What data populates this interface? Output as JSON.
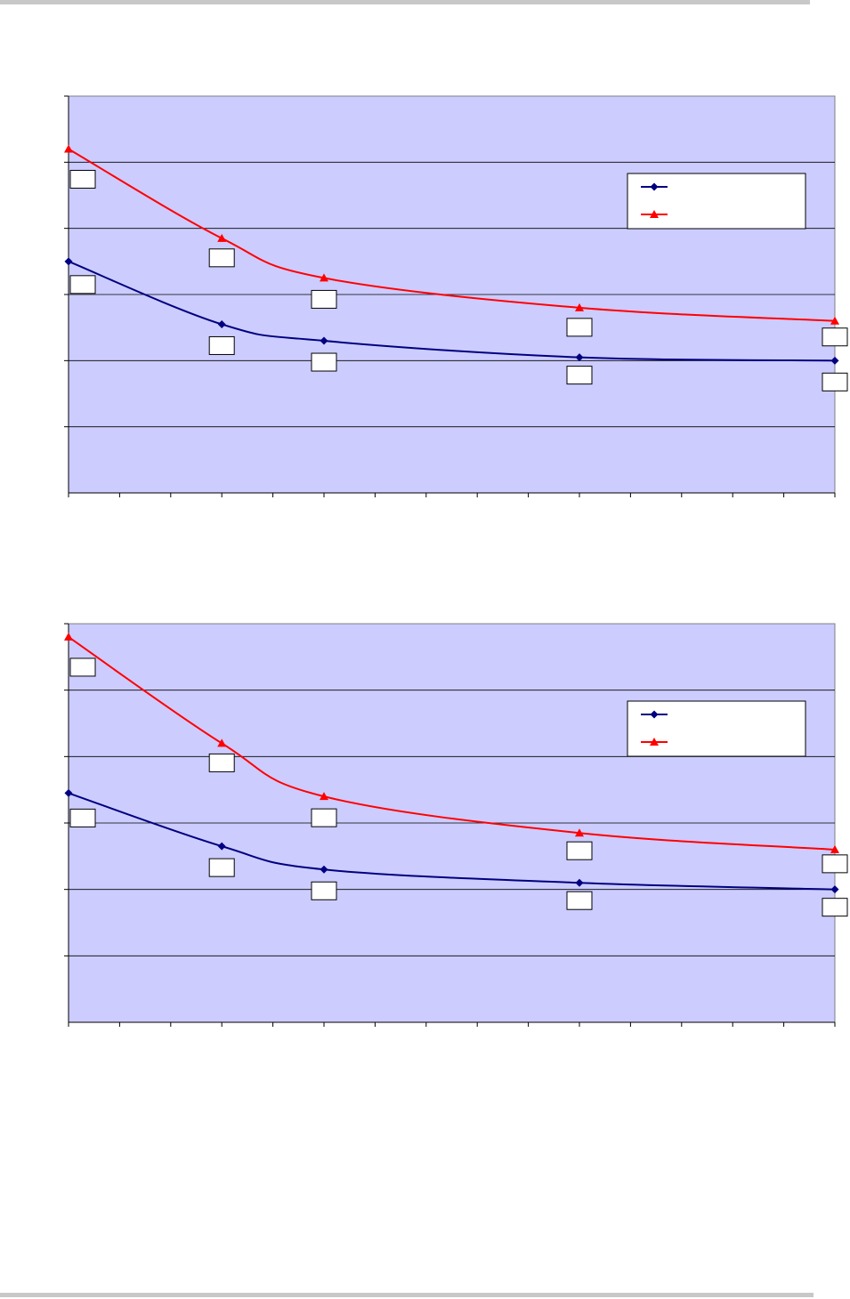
{
  "colors": {
    "plot_bg": "#ccccff",
    "grid": "#000000",
    "series_blue": "#000080",
    "series_red": "#ff0000",
    "rule": "#c8c8c8"
  },
  "chart_data": [
    {
      "type": "line",
      "title": "",
      "xlabel": "",
      "ylabel": "",
      "xlim": [
        0,
        15
      ],
      "ylim": [
        0,
        6
      ],
      "x_ticks": 15,
      "y_gridlines": [
        1,
        2,
        3,
        4,
        5,
        6
      ],
      "grid": true,
      "legend": "top-right",
      "series": [
        {
          "name": "",
          "color": "#000080",
          "marker": "diamond",
          "x": [
            0,
            3,
            5,
            10,
            15
          ],
          "y": [
            3.5,
            2.55,
            2.3,
            2.05,
            2.0
          ],
          "labels": [
            "",
            "",
            "",
            "",
            ""
          ]
        },
        {
          "name": "",
          "color": "#ff0000",
          "marker": "triangle",
          "x": [
            0,
            3,
            5,
            10,
            15
          ],
          "y": [
            5.2,
            3.85,
            3.25,
            2.8,
            2.6
          ],
          "labels": [
            "",
            "",
            "",
            "",
            ""
          ]
        }
      ]
    },
    {
      "type": "line",
      "title": "",
      "xlabel": "",
      "ylabel": "",
      "xlim": [
        0,
        15
      ],
      "ylim": [
        0,
        6
      ],
      "x_ticks": 15,
      "y_gridlines": [
        1,
        2,
        3,
        4,
        5,
        6
      ],
      "grid": true,
      "legend": "top-right",
      "series": [
        {
          "name": "",
          "color": "#000080",
          "marker": "diamond",
          "x": [
            0,
            3,
            5,
            10,
            15
          ],
          "y": [
            3.45,
            2.65,
            2.3,
            2.1,
            2.0
          ],
          "labels": [
            "",
            "",
            "",
            "",
            ""
          ]
        },
        {
          "name": "",
          "color": "#ff0000",
          "marker": "triangle",
          "x": [
            0,
            3,
            5,
            10,
            15
          ],
          "y": [
            5.8,
            4.2,
            3.4,
            2.85,
            2.6
          ],
          "labels": [
            "",
            "",
            "",
            "",
            ""
          ]
        }
      ]
    }
  ]
}
